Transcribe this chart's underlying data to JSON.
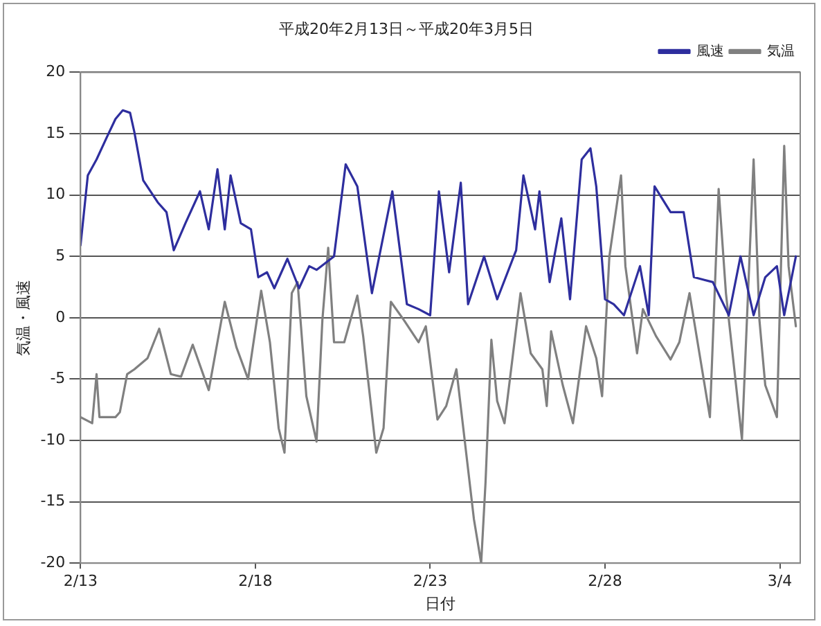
{
  "chart_data": {
    "type": "line",
    "title": "平成20年2月13日～平成20年3月5日",
    "xlabel": "日付",
    "ylabel": "気温・風速",
    "xlim": [
      "--02-13",
      "--03-04T14:00"
    ],
    "xticks": [
      {
        "value": "--02-13",
        "label": "2/13"
      },
      {
        "value": "--02-18",
        "label": "2/18"
      },
      {
        "value": "--02-23",
        "label": "2/23"
      },
      {
        "value": "--02-28",
        "label": "2/28"
      },
      {
        "value": "--03-04",
        "label": "3/4"
      }
    ],
    "ylim": [
      -20,
      20
    ],
    "yticks": [
      -20,
      -15,
      -10,
      -5,
      0,
      5,
      10,
      15,
      20
    ],
    "grid": "y",
    "legend": "top right",
    "marker": "none",
    "line_style": "solid",
    "series": [
      {
        "name": "風速",
        "color": "#2e2e9e",
        "x": [
          "--02-13T00:00",
          "--02-13T05:00",
          "--02-13T11:00",
          "--02-13T18:00",
          "--02-14T00:00",
          "--02-14T05:00",
          "--02-14T10:00",
          "--02-14T13:00",
          "--02-14T19:00",
          "--02-15T05:00",
          "--02-15T11:00",
          "--02-15T16:00",
          "--02-16T00:00",
          "--02-16T10:00",
          "--02-16T16:00",
          "--02-16T22:00",
          "--02-17T03:00",
          "--02-17T07:00",
          "--02-17T14:00",
          "--02-17T21:00",
          "--02-18T02:00",
          "--02-18T08:00",
          "--02-18T13:00",
          "--02-18T22:00",
          "--02-19T06:00",
          "--02-19T13:00",
          "--02-19T18:00",
          "--02-20T06:00",
          "--02-20T14:00",
          "--02-20T22:00",
          "--02-21T08:00",
          "--02-21T22:00",
          "--02-22T08:00",
          "--02-22T16:00",
          "--02-23T00:00",
          "--02-23T06:00",
          "--02-23T13:00",
          "--02-23T21:00",
          "--02-24T02:00",
          "--02-24T13:00",
          "--02-24T22:00",
          "--02-25T11:00",
          "--02-25T16:00",
          "--02-26T00:00",
          "--02-26T03:00",
          "--02-26T10:00",
          "--02-26T18:00",
          "--02-27T00:00",
          "--02-27T08:00",
          "--02-27T14:00",
          "--02-27T18:00",
          "--02-28T00:00",
          "--02-28T06:00",
          "--02-28T13:00",
          "--02-29T00:00",
          "--02-29T06:00",
          "--02-29T10:00",
          "--02-29T21:00",
          "--03-01T06:00",
          "--03-01T13:00",
          "--03-02T02:00",
          "--03-02T13:00",
          "--03-02T21:00",
          "--03-03T06:00",
          "--03-03T14:00",
          "--03-03T22:00",
          "--03-04T03:00",
          "--03-04T11:00"
        ],
        "values": [
          5.9,
          11.6,
          12.9,
          14.7,
          16.2,
          16.9,
          16.7,
          15.1,
          11.2,
          9.4,
          8.6,
          5.5,
          7.7,
          10.3,
          7.2,
          12.1,
          7.2,
          11.6,
          7.7,
          7.2,
          3.3,
          3.7,
          2.4,
          4.8,
          2.4,
          4.2,
          3.9,
          5.0,
          12.5,
          10.7,
          2.0,
          10.3,
          1.1,
          0.7,
          0.2,
          10.3,
          3.7,
          11.0,
          1.1,
          5.0,
          1.5,
          5.5,
          11.6,
          7.2,
          10.3,
          2.9,
          8.1,
          1.5,
          12.9,
          13.8,
          10.7,
          1.5,
          1.1,
          0.2,
          4.2,
          0.2,
          10.7,
          8.6,
          8.6,
          3.3,
          2.9,
          0.2,
          5.0,
          0.2,
          3.3,
          4.2,
          0.2,
          5.0
        ]
      },
      {
        "name": "気温",
        "color": "#808080",
        "x": [
          "--02-13T00:00",
          "--02-13T08:00",
          "--02-13T11:00",
          "--02-13T13:00",
          "--02-14T00:00",
          "--02-14T03:00",
          "--02-14T08:00",
          "--02-14T13:00",
          "--02-14T22:00",
          "--02-15T06:00",
          "--02-15T14:00",
          "--02-15T21:00",
          "--02-16T05:00",
          "--02-16T16:00",
          "--02-17T03:00",
          "--02-17T11:00",
          "--02-17T19:00",
          "--02-18T04:00",
          "--02-18T10:00",
          "--02-18T16:00",
          "--02-18T20:00",
          "--02-19T01:00",
          "--02-19T05:00",
          "--02-19T11:00",
          "--02-19T18:00",
          "--02-19T22:00",
          "--02-20T02:00",
          "--02-20T06:00",
          "--02-20T13:00",
          "--02-20T22:00",
          "--02-21T02:00",
          "--02-21T11:00",
          "--02-21T16:00",
          "--02-21T21:00",
          "--02-22T06:00",
          "--02-22T16:00",
          "--02-22T21:00",
          "--02-23T05:00",
          "--02-23T11:00",
          "--02-23T18:00",
          "--02-24T00:00",
          "--02-24T06:00",
          "--02-24T11:00",
          "--02-24T14:00",
          "--02-24T18:00",
          "--02-24T22:00",
          "--02-25T03:00",
          "--02-25T14:00",
          "--02-25T21:00",
          "--02-26T05:00",
          "--02-26T08:00",
          "--02-26T11:00",
          "--02-26T19:00",
          "--02-27T02:00",
          "--02-27T11:00",
          "--02-27T18:00",
          "--02-27T22:00",
          "--02-28T03:00",
          "--02-28T11:00",
          "--02-28T14:00",
          "--02-28T22:00",
          "--02-29T02:00",
          "--02-29T11:00",
          "--02-29T21:00",
          "--03-01T03:00",
          "--03-01T10:00",
          "--03-02T00:00",
          "--03-02T06:00",
          "--03-02T11:00",
          "--03-02T22:00",
          "--03-03T06:00",
          "--03-03T10:00",
          "--03-03T14:00",
          "--03-03T22:00",
          "--03-04T03:00",
          "--03-04T06:00",
          "--03-04T11:00"
        ],
        "values": [
          -8.1,
          -8.6,
          -4.6,
          -8.1,
          -8.1,
          -7.7,
          -4.6,
          -4.2,
          -3.3,
          -0.9,
          -4.6,
          -4.8,
          -2.2,
          -5.9,
          1.3,
          -2.4,
          -5.0,
          2.2,
          -2.0,
          -9.0,
          -11.0,
          2.0,
          2.9,
          -6.4,
          -10.1,
          -0.2,
          5.7,
          -2.0,
          -2.0,
          1.8,
          -1.5,
          -11.0,
          -9.0,
          1.3,
          -0.2,
          -2.0,
          -0.7,
          -8.3,
          -7.2,
          -4.2,
          -10.3,
          -16.4,
          -20.0,
          -13.4,
          -1.8,
          -6.8,
          -8.6,
          2.0,
          -2.9,
          -4.2,
          -7.2,
          -1.1,
          -5.5,
          -8.6,
          -0.7,
          -3.3,
          -6.4,
          5.0,
          11.6,
          4.2,
          -2.9,
          0.7,
          -1.5,
          -3.4,
          -2.0,
          2.0,
          -8.1,
          10.5,
          2.0,
          -9.9,
          12.9,
          -0.2,
          -5.5,
          -8.1,
          14.0,
          4.2,
          -0.7
        ]
      }
    ]
  }
}
